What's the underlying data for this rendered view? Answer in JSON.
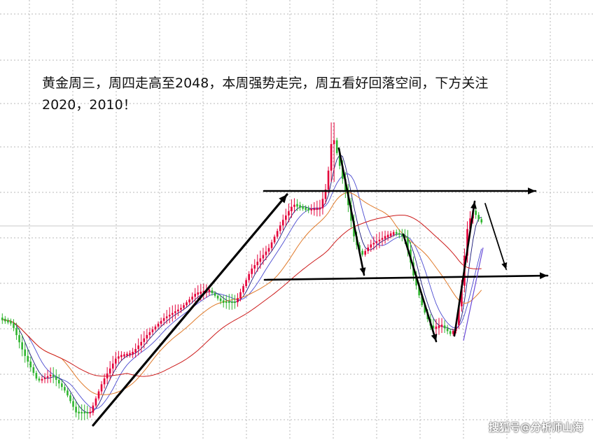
{
  "annotation": {
    "line1": "黄金周三，周四走高至2048，本周强势走完，周五看好回落空间，下方关注",
    "line2": "2020，2010！"
  },
  "watermark": "搜狐号@分析师山海",
  "colors": {
    "up": "#e4003a",
    "down": "#2fb52f",
    "ma_fast": "#1a1a7a",
    "ma_mid": "#4a4ad0",
    "ma_slow1": "#e07a2a",
    "ma_slow2": "#cc1a1a",
    "arrow": "#000000",
    "grid": "#b8b8b8"
  },
  "chart_data": {
    "type": "candlestick",
    "levels": [
      2048,
      2020,
      2010
    ],
    "annotation_arrows": [
      "trend-up",
      "resistance",
      "support",
      "drop-1",
      "drop-2",
      "rebound",
      "next-drop"
    ]
  }
}
